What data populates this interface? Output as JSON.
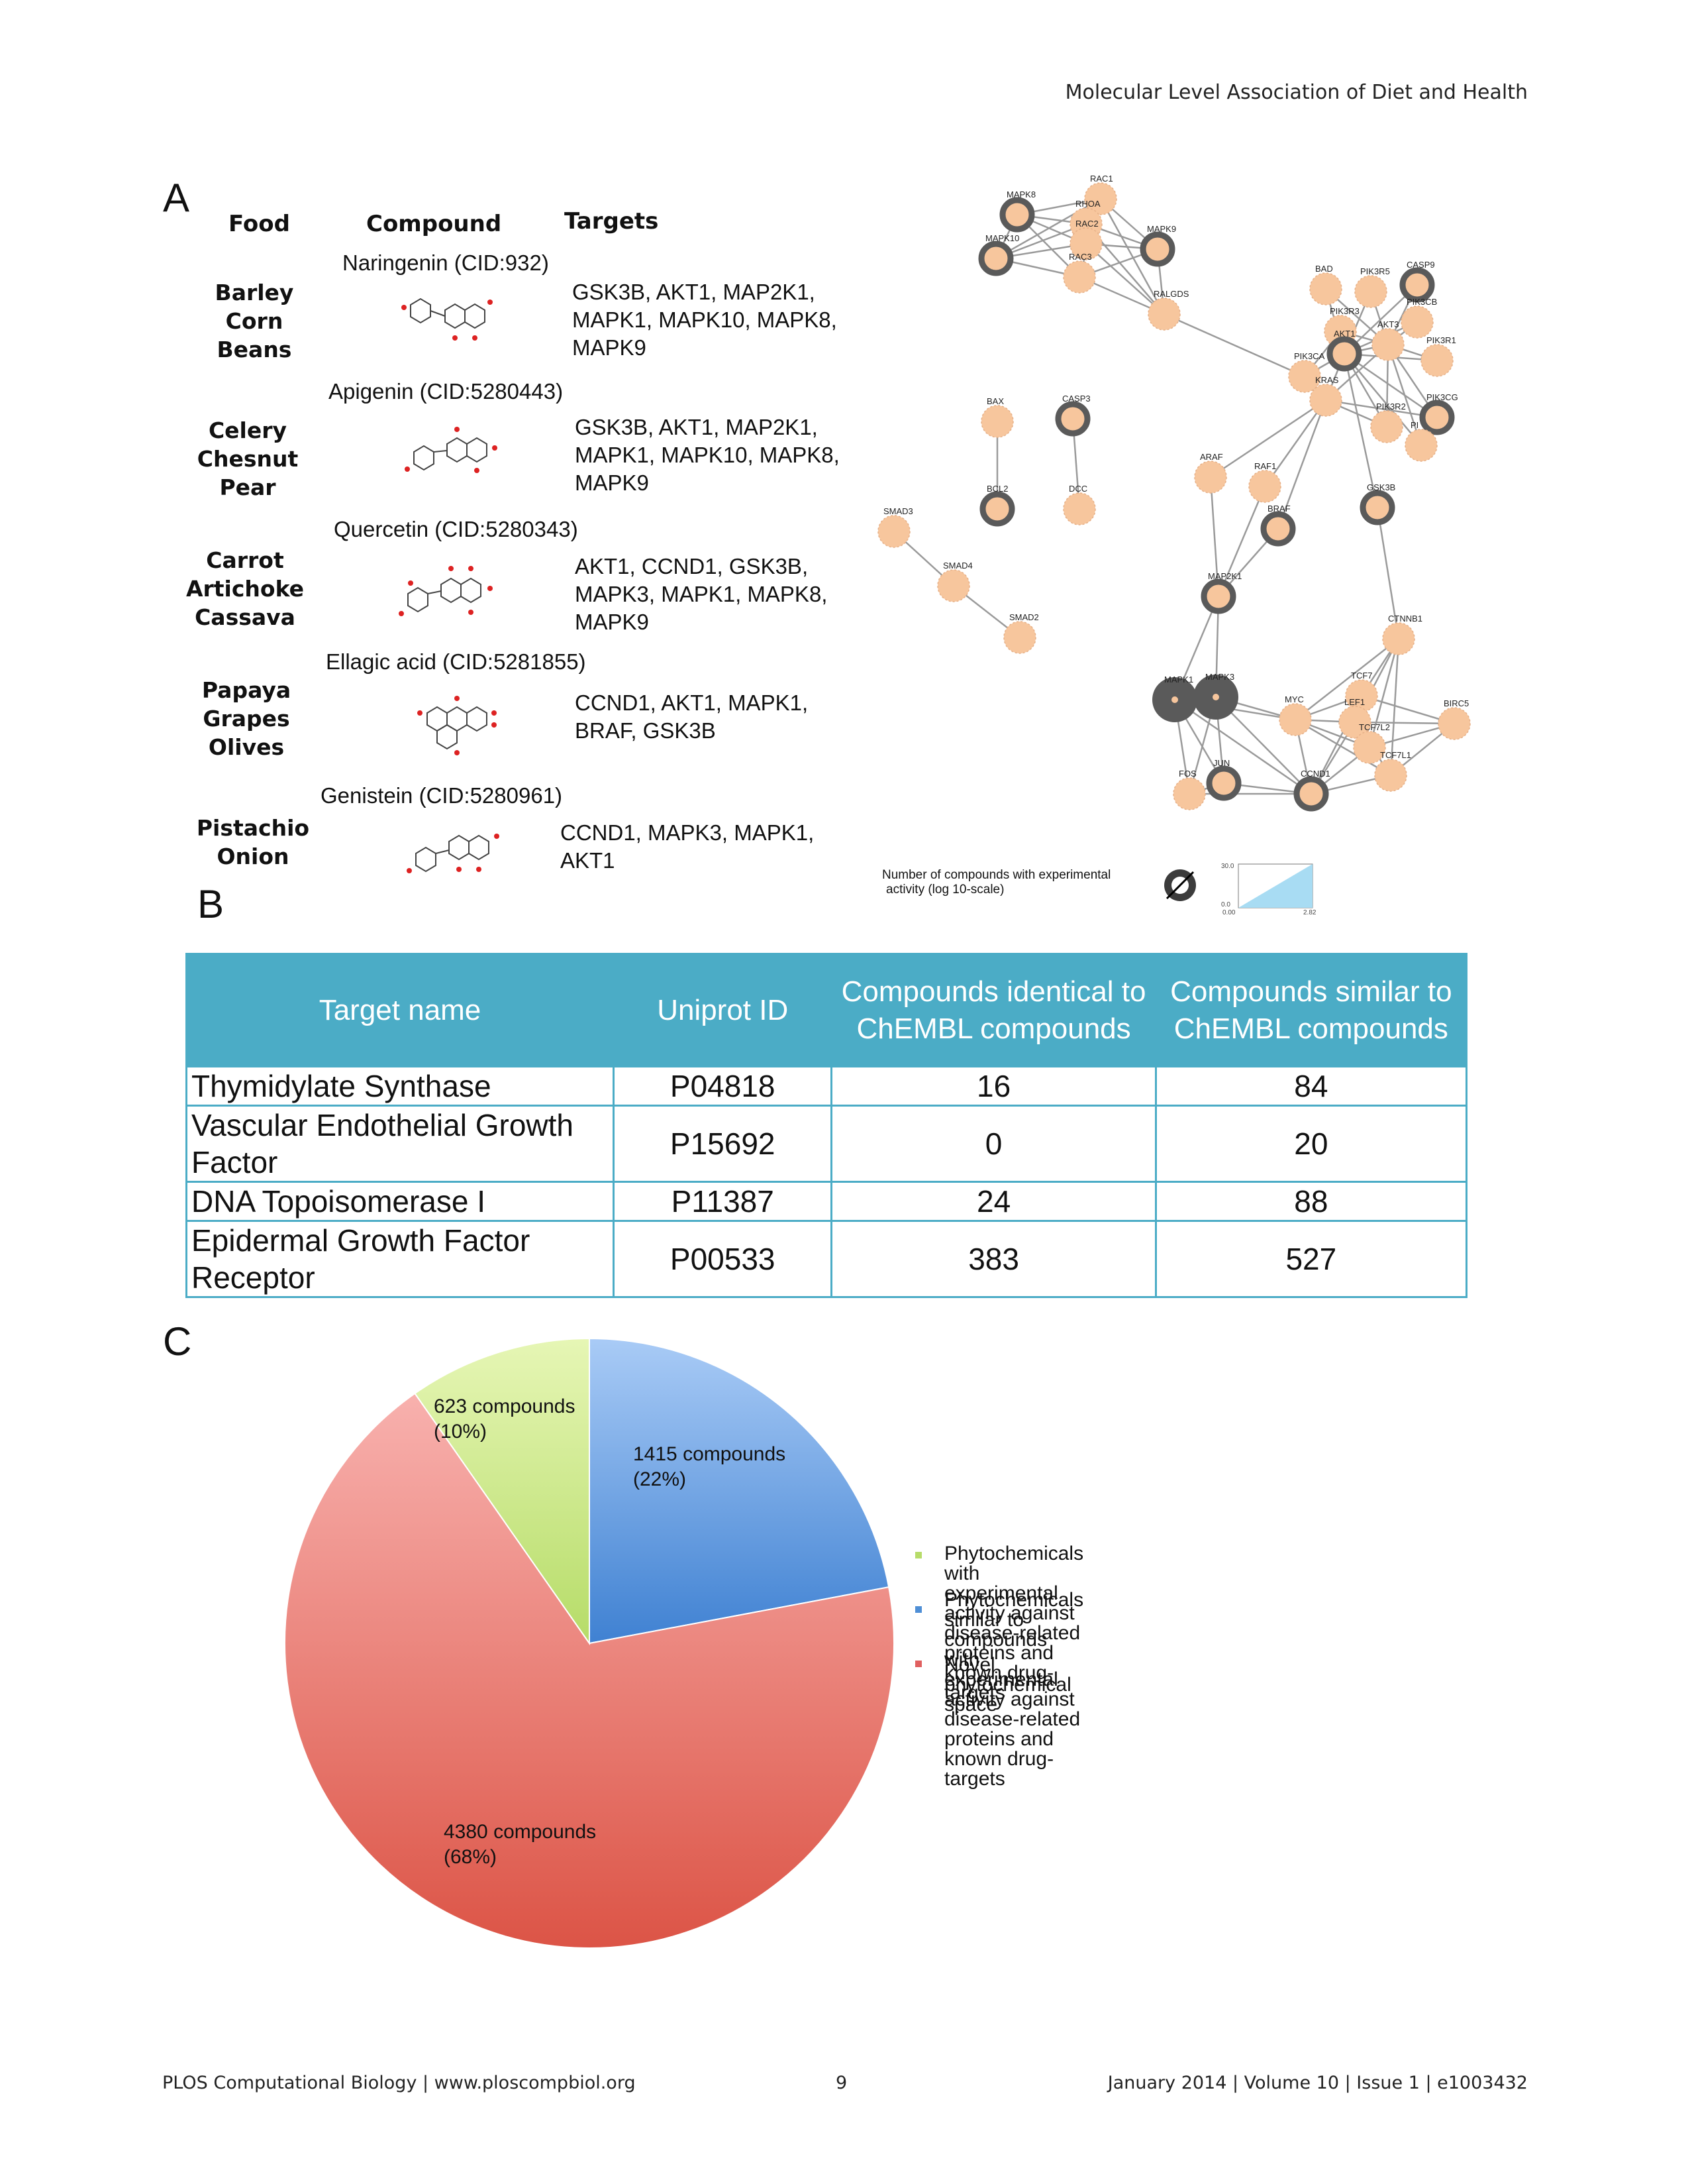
{
  "header": {
    "running_title": "Molecular Level Association of Diet and Health"
  },
  "panel_a": {
    "letter": "A",
    "col_headers": {
      "food": "Food",
      "compound": "Compound",
      "targets": "Targets"
    },
    "rows": [
      {
        "foods": [
          "Barley",
          "Corn",
          "Beans"
        ],
        "compound": "Naringenin (CID:932)",
        "targets": [
          "GSK3B, AKT1, MAP2K1,",
          "MAPK1, MAPK10, MAPK8,",
          "MAPK9"
        ]
      },
      {
        "foods": [
          "Celery",
          "Chesnut",
          "Pear"
        ],
        "compound": "Apigenin (CID:5280443)",
        "targets": [
          "GSK3B, AKT1, MAP2K1,",
          "MAPK1, MAPK10, MAPK8,",
          "MAPK9"
        ]
      },
      {
        "foods": [
          "Carrot",
          "Artichoke",
          "Cassava"
        ],
        "compound": "Quercetin (CID:5280343)",
        "targets": [
          "AKT1, CCND1, GSK3B,",
          "MAPK3, MAPK1, MAPK8,",
          "MAPK9"
        ]
      },
      {
        "foods": [
          "Papaya",
          "Grapes",
          "Olives"
        ],
        "compound": "Ellagic acid (CID:5281855)",
        "targets": [
          "CCND1, AKT1, MAPK1,",
          "BRAF, GSK3B"
        ]
      },
      {
        "foods": [
          "Pistachio",
          "Onion"
        ],
        "compound": "Genistein (CID:5280961)",
        "targets": [
          "CCND1, MAPK3, MAPK1,",
          "AKT1"
        ]
      }
    ],
    "network": {
      "nodes": [
        "MAPK8",
        "RAC1",
        "RHOA",
        "MAPK10",
        "RAC2",
        "MAPK9",
        "RAC3",
        "RALGDS",
        "BAD",
        "PIK3R5",
        "CASP9",
        "PIK3R3",
        "PIK3CB",
        "AKT1",
        "AKT3",
        "PIK3R1",
        "PIK3CA",
        "KRAS",
        "PIK3CG",
        "PIK3R2",
        "PI",
        "BAX",
        "CASP3",
        "BCL2",
        "DCC",
        "ARAF",
        "RAF1",
        "GSK3B",
        "BRAF",
        "SMAD3",
        "SMAD4",
        "SMAD2",
        "MAP2K1",
        "CTNNB1",
        "MAPK1",
        "MAPK3",
        "TCF7",
        "LEF1",
        "MYC",
        "BIRC5",
        "TCF7L2",
        "TCF7L1",
        "FOS",
        "JUN",
        "CCND1"
      ],
      "legend_caption": [
        "Number of compounds with experimental",
        "activity (log 10-scale)"
      ],
      "scale_top": "30.0",
      "scale_bottom": "0.0",
      "scale_min": "0.00",
      "scale_max": "2.82"
    }
  },
  "panel_b": {
    "letter": "B",
    "headers": [
      "Target name",
      "Uniprot ID",
      "Compounds identical to ChEMBL compounds",
      "Compounds similar to ChEMBL compounds"
    ],
    "rows": [
      {
        "name": "Thymidylate Synthase",
        "uniprot": "P04818",
        "identical": "16",
        "similar": "84"
      },
      {
        "name": "Vascular Endothelial Growth Factor",
        "uniprot": "P15692",
        "identical": "0",
        "similar": "20"
      },
      {
        "name": "DNA Topoisomerase I",
        "uniprot": "P11387",
        "identical": "24",
        "similar": "88"
      },
      {
        "name": "Epidermal Growth Factor Receptor",
        "uniprot": "P00533",
        "identical": "383",
        "similar": "527"
      }
    ]
  },
  "panel_c": {
    "letter": "C"
  },
  "chart_data": {
    "type": "pie",
    "title": "",
    "slices": [
      {
        "label": "Phytochemicals similar to compounds with experimental activity against disease-related proteins and known drug-targets",
        "value": 1415,
        "percent": 22,
        "text": "1415 compounds",
        "pct_text": "(22%)",
        "color": "#7aa9e6"
      },
      {
        "label": "Novel phytochemical space",
        "value": 4380,
        "percent": 68,
        "text": "4380 compounds",
        "pct_text": "(68%)",
        "color": "#e8706a"
      },
      {
        "label": "Phytochemicals with experimental activity against disease-related proteins and known drug-targets",
        "value": 623,
        "percent": 10,
        "text": "623 compounds",
        "pct_text": "(10%)",
        "color": "#cde98a"
      }
    ],
    "legend": [
      {
        "lines": [
          "Phytochemicals with experimental activity against",
          "disease-related proteins and known drug-targets"
        ],
        "color": "#b7dc6a"
      },
      {
        "lines": [
          "Phytochemicals similar to compounds with",
          "experimental activity against disease-related",
          "proteins and known drug-targets"
        ],
        "color": "#4f8fd6"
      },
      {
        "lines": [
          "Novel phytochemical space"
        ],
        "color": "#e06060"
      }
    ],
    "legend_placement": "right"
  },
  "footer": {
    "journal": "PLOS Computational Biology | www.ploscompbiol.org",
    "page": "9",
    "issue": "January 2014 | Volume 10 | Issue 1 | e1003432"
  }
}
